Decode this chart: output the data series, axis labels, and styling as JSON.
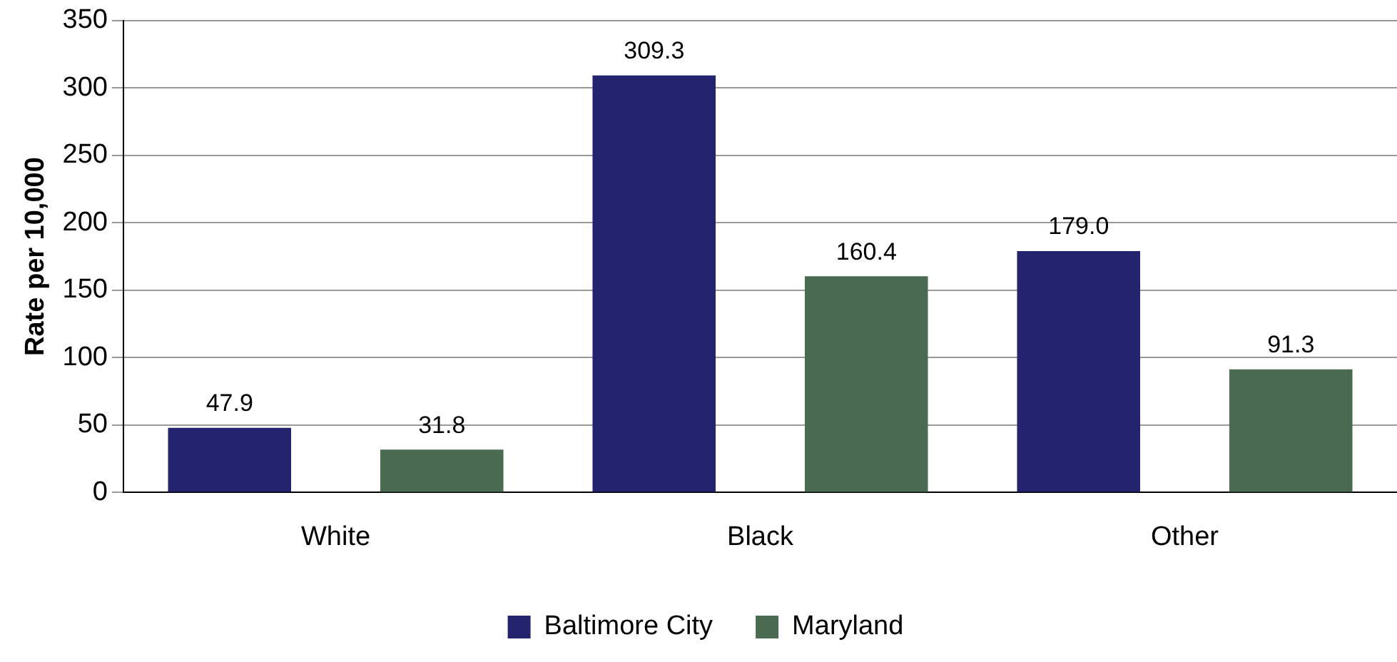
{
  "chart_data": {
    "type": "bar",
    "ylabel": "Rate per 10,000",
    "categories": [
      "White",
      "Black",
      "Other"
    ],
    "series": [
      {
        "name": "Baltimore City",
        "color": "#24246e",
        "values": [
          47.9,
          309.3,
          179.0
        ],
        "value_labels": [
          "47.9",
          "309.3",
          "179.0"
        ]
      },
      {
        "name": "Maryland",
        "color": "#4a6b52",
        "values": [
          31.8,
          160.4,
          91.3
        ],
        "value_labels": [
          "31.8",
          "160.4",
          "91.3"
        ]
      }
    ],
    "ylim": [
      0,
      350
    ],
    "yticks": [
      0,
      50,
      100,
      150,
      200,
      250,
      300,
      350
    ],
    "grid": "y",
    "legend": "bottom"
  }
}
